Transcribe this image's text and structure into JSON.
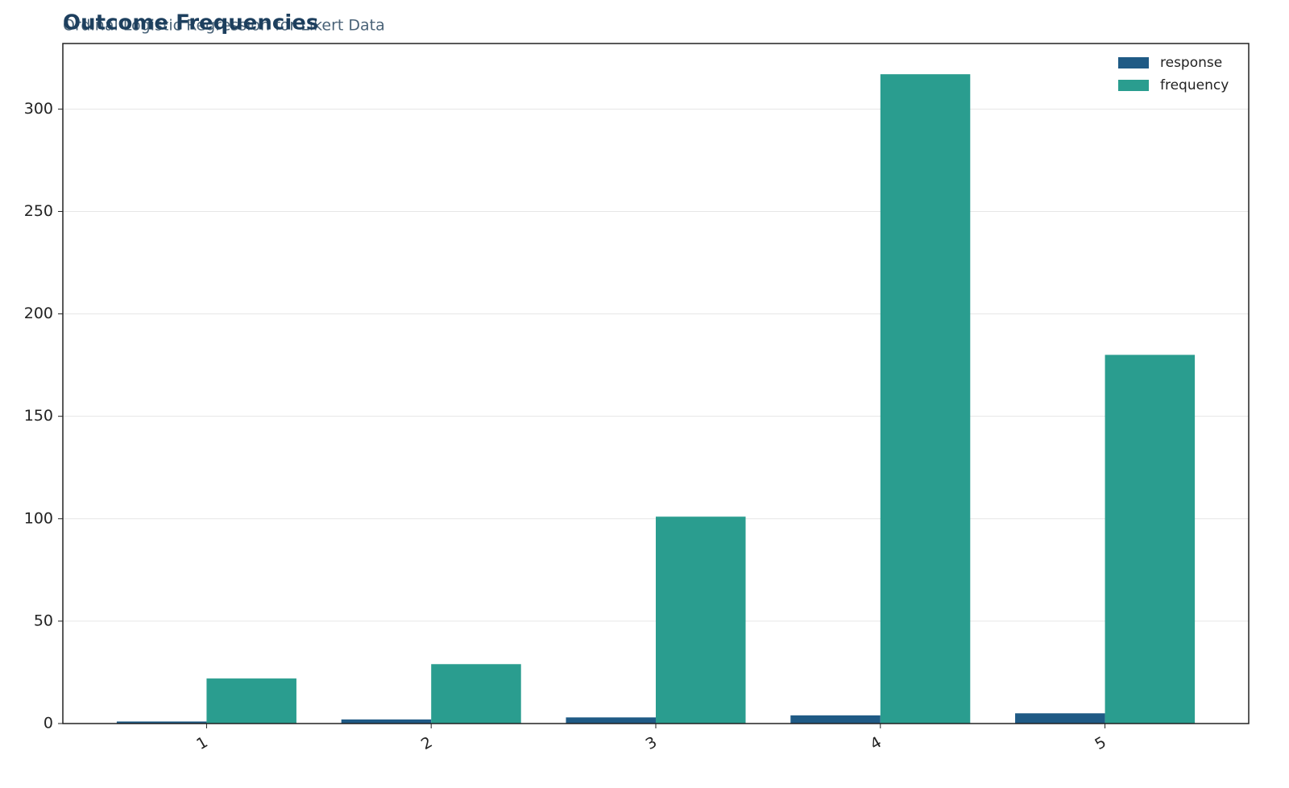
{
  "chart_data": {
    "type": "bar",
    "title": "Outcome Frequencies",
    "subtitle": "Ordinal Logistic Regression for Likert Data",
    "categories": [
      "1",
      "2",
      "3",
      "4",
      "5"
    ],
    "series": [
      {
        "name": "response",
        "color": "#1f5a85",
        "values": [
          1,
          2,
          3,
          4,
          5
        ]
      },
      {
        "name": "frequency",
        "color": "#2a9d8f",
        "values": [
          22,
          29,
          101,
          317,
          180
        ]
      }
    ],
    "ylim": [
      0,
      332
    ],
    "yticks": [
      0,
      50,
      100,
      150,
      200,
      250,
      300
    ],
    "grid": true,
    "legend": "upper-right"
  }
}
